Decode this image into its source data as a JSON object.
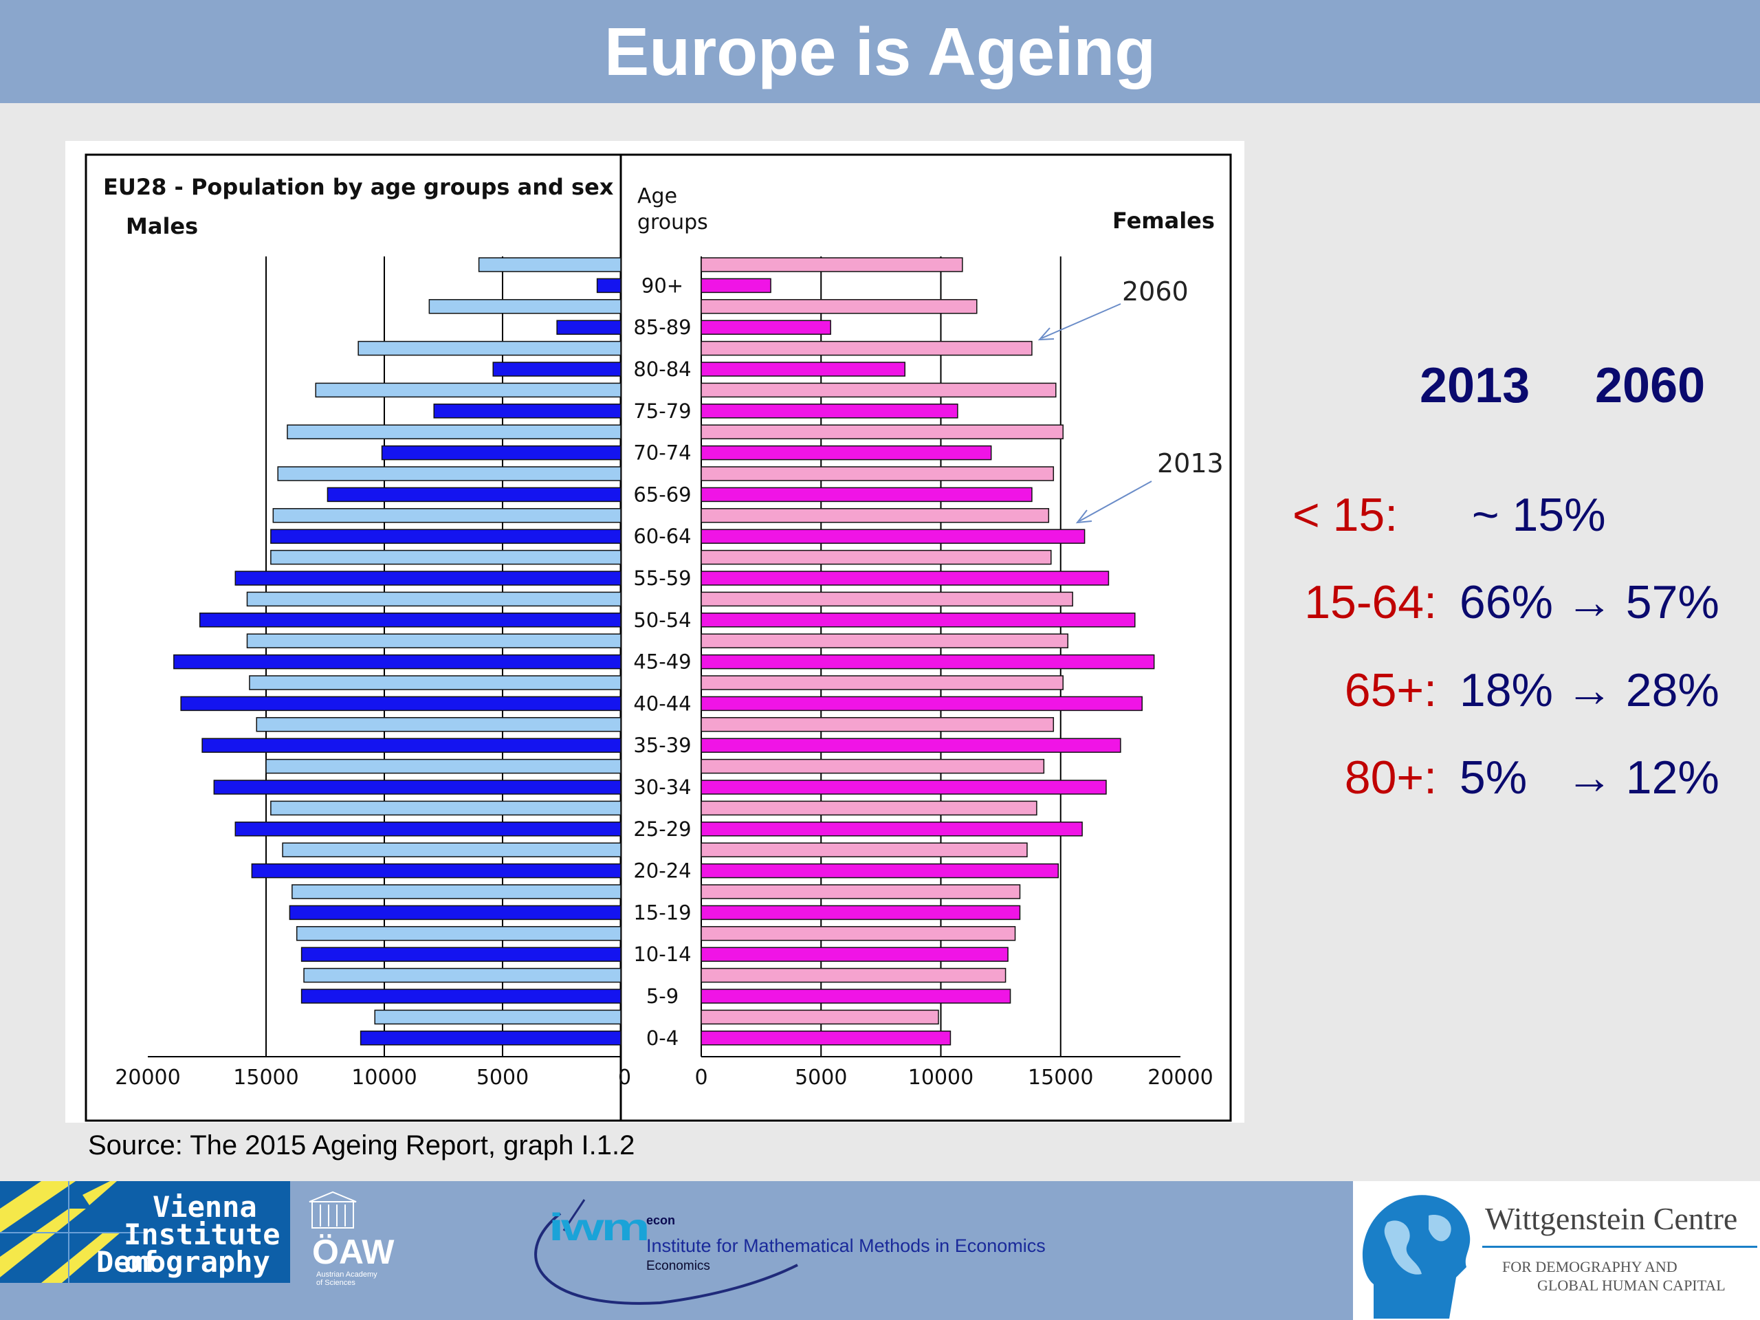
{
  "slide": {
    "title": "Europe is Ageing",
    "source": "Source: The 2015 Ageing Report, graph I.1.2"
  },
  "stats": {
    "year_start": "2013",
    "year_end": "2060",
    "rows": [
      {
        "label": "<  15:",
        "value": "~ 15%"
      },
      {
        "label": "15-64:",
        "value": "66% → 57%"
      },
      {
        "label": "65+:",
        "value": "18% → 28%"
      },
      {
        "label": "80+:",
        "value": "5%   → 12%"
      }
    ],
    "colors": {
      "label": "#c00000",
      "value": "#0a0a6e"
    }
  },
  "logos": {
    "vid_lines": [
      "Vienna",
      "Institute of",
      "Demography"
    ],
    "oaw": "ÖAW",
    "oaw_sub": "Austrian Academy of Sciences",
    "iwm": "iwm",
    "iwm_econ": "econ",
    "iwm_name": "Institute for Mathematical Methods in Economics",
    "iwm_sub": "Economics",
    "wc_name": "Wittgenstein Centre",
    "wc_sub1": "FOR DEMOGRAPHY AND",
    "wc_sub2": "GLOBAL HUMAN CAPITAL"
  },
  "chart_data": {
    "type": "bar",
    "orientation": "horizontal",
    "title": "EU28 - Population by age groups and sex",
    "left_label": "Males",
    "right_label": "Females",
    "center_label_line1": "Age",
    "center_label_line2": "groups",
    "categories": [
      "90+",
      "85-89",
      "80-84",
      "75-79",
      "70-74",
      "65-69",
      "60-64",
      "55-59",
      "50-54",
      "45-49",
      "40-44",
      "35-39",
      "30-34",
      "25-29",
      "20-24",
      "15-19",
      "10-14",
      "5-9",
      "0-4"
    ],
    "male_ticks": [
      "20000",
      "15000",
      "10000",
      "5000",
      "0"
    ],
    "female_ticks": [
      "0",
      "5000",
      "10000",
      "15000",
      "20000"
    ],
    "xlim": [
      0,
      20000
    ],
    "series": [
      {
        "name": "2060",
        "sex": "male",
        "color": "#9fcdf3",
        "values": [
          6000,
          8100,
          11100,
          12900,
          14100,
          14500,
          14700,
          14800,
          15800,
          15800,
          15700,
          15400,
          15000,
          14800,
          14300,
          13900,
          13700,
          13400,
          10400
        ]
      },
      {
        "name": "2013",
        "sex": "male",
        "color": "#1414f0",
        "values": [
          1000,
          2700,
          5400,
          7900,
          10100,
          12400,
          14800,
          16300,
          17800,
          18900,
          18600,
          17700,
          17200,
          16300,
          15600,
          14000,
          13500,
          13500,
          11000
        ]
      },
      {
        "name": "2060",
        "sex": "female",
        "color": "#f5a3cf",
        "values": [
          10900,
          11500,
          13800,
          14800,
          15100,
          14700,
          14500,
          14600,
          15500,
          15300,
          15100,
          14700,
          14300,
          14000,
          13600,
          13300,
          13100,
          12700,
          9900
        ]
      },
      {
        "name": "2013",
        "sex": "female",
        "color": "#f014e6",
        "values": [
          2900,
          5400,
          8500,
          10700,
          12100,
          13800,
          16000,
          17000,
          18100,
          18900,
          18400,
          17500,
          16900,
          15900,
          14900,
          13300,
          12800,
          12900,
          10400
        ]
      }
    ],
    "annotations": [
      "2060",
      "2013"
    ],
    "grid": true
  }
}
